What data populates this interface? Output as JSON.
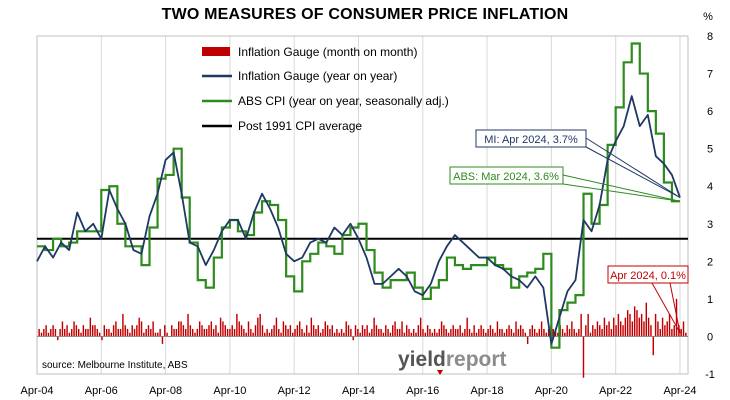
{
  "chart_data": {
    "type": "bar+line",
    "title": "TWO MEASURES OF CONSUMER PRICE INFLATION",
    "ylabel": "%",
    "ylim": [
      -1,
      8
    ],
    "yticks": [
      -1,
      0,
      1,
      2,
      3,
      4,
      5,
      6,
      7,
      8
    ],
    "xlim": [
      2004.25,
      2024.5
    ],
    "xticks": [
      {
        "x": 2004.25,
        "label": "Apr-04"
      },
      {
        "x": 2006.25,
        "label": "Apr-06"
      },
      {
        "x": 2008.25,
        "label": "Apr-08"
      },
      {
        "x": 2010.25,
        "label": "Apr-10"
      },
      {
        "x": 2012.25,
        "label": "Apr-12"
      },
      {
        "x": 2014.25,
        "label": "Apr-14"
      },
      {
        "x": 2016.25,
        "label": "Apr-16"
      },
      {
        "x": 2018.25,
        "label": "Apr-18"
      },
      {
        "x": 2020.25,
        "label": "Apr-20"
      },
      {
        "x": 2022.25,
        "label": "Apr-22"
      },
      {
        "x": 2024.25,
        "label": "Apr-24"
      }
    ],
    "legend": {
      "placement": "top-left",
      "entries": [
        {
          "label": "Inflation Gauge (month on month)",
          "color": "#c00000",
          "kind": "bar"
        },
        {
          "label": "Inflation Gauge (year on year)",
          "color": "#1f3864",
          "kind": "line"
        },
        {
          "label": "ABS CPI (year on year, seasonally adj.)",
          "color": "#2e8b1e",
          "kind": "line"
        },
        {
          "label": "Post 1991 CPI average",
          "color": "#000000",
          "kind": "line"
        }
      ]
    },
    "series": [
      {
        "name": "Inflation Gauge (year on year)",
        "type": "line",
        "color": "#1f3864",
        "points": [
          [
            2004.25,
            2.0
          ],
          [
            2004.5,
            2.4
          ],
          [
            2004.75,
            2.1
          ],
          [
            2005.0,
            2.5
          ],
          [
            2005.25,
            2.3
          ],
          [
            2005.5,
            3.3
          ],
          [
            2005.75,
            2.8
          ],
          [
            2006.0,
            3.0
          ],
          [
            2006.25,
            2.6
          ],
          [
            2006.5,
            3.9
          ],
          [
            2006.75,
            3.4
          ],
          [
            2007.0,
            3.0
          ],
          [
            2007.25,
            2.3
          ],
          [
            2007.5,
            2.2
          ],
          [
            2007.75,
            3.2
          ],
          [
            2008.0,
            3.8
          ],
          [
            2008.25,
            4.7
          ],
          [
            2008.5,
            4.9
          ],
          [
            2008.75,
            3.8
          ],
          [
            2009.0,
            2.5
          ],
          [
            2009.25,
            2.4
          ],
          [
            2009.5,
            1.9
          ],
          [
            2009.75,
            2.3
          ],
          [
            2010.0,
            2.8
          ],
          [
            2010.25,
            3.1
          ],
          [
            2010.5,
            3.1
          ],
          [
            2010.75,
            2.6
          ],
          [
            2011.0,
            3.3
          ],
          [
            2011.25,
            3.8
          ],
          [
            2011.5,
            3.4
          ],
          [
            2011.75,
            2.9
          ],
          [
            2012.0,
            2.2
          ],
          [
            2012.25,
            2.0
          ],
          [
            2012.5,
            2.1
          ],
          [
            2012.75,
            2.5
          ],
          [
            2013.0,
            2.6
          ],
          [
            2013.25,
            2.5
          ],
          [
            2013.5,
            2.9
          ],
          [
            2013.75,
            2.7
          ],
          [
            2014.0,
            3.0
          ],
          [
            2014.25,
            2.6
          ],
          [
            2014.5,
            2.1
          ],
          [
            2014.75,
            1.4
          ],
          [
            2015.0,
            1.4
          ],
          [
            2015.25,
            1.6
          ],
          [
            2015.5,
            1.8
          ],
          [
            2015.75,
            1.6
          ],
          [
            2016.0,
            1.2
          ],
          [
            2016.25,
            1.1
          ],
          [
            2016.5,
            1.4
          ],
          [
            2016.75,
            2.0
          ],
          [
            2017.0,
            2.4
          ],
          [
            2017.25,
            2.7
          ],
          [
            2017.5,
            2.5
          ],
          [
            2017.75,
            2.3
          ],
          [
            2018.0,
            2.1
          ],
          [
            2018.25,
            2.1
          ],
          [
            2018.5,
            1.9
          ],
          [
            2018.75,
            1.8
          ],
          [
            2019.0,
            1.6
          ],
          [
            2019.25,
            1.5
          ],
          [
            2019.5,
            1.3
          ],
          [
            2019.75,
            1.6
          ],
          [
            2020.0,
            1.3
          ],
          [
            2020.25,
            -0.2
          ],
          [
            2020.5,
            0.5
          ],
          [
            2020.75,
            1.2
          ],
          [
            2021.0,
            1.5
          ],
          [
            2021.25,
            3.1
          ],
          [
            2021.5,
            2.8
          ],
          [
            2021.75,
            3.5
          ],
          [
            2022.0,
            4.7
          ],
          [
            2022.25,
            5.2
          ],
          [
            2022.5,
            5.6
          ],
          [
            2022.75,
            6.4
          ],
          [
            2023.0,
            5.6
          ],
          [
            2023.25,
            5.9
          ],
          [
            2023.5,
            4.8
          ],
          [
            2023.75,
            4.6
          ],
          [
            2024.0,
            4.3
          ],
          [
            2024.25,
            3.7
          ]
        ]
      },
      {
        "name": "ABS CPI (year on year, seasonally adj.)",
        "type": "step",
        "color": "#2e8b1e",
        "points": [
          [
            2004.25,
            2.4
          ],
          [
            2004.5,
            2.3
          ],
          [
            2004.75,
            2.6
          ],
          [
            2005.0,
            2.4
          ],
          [
            2005.25,
            2.5
          ],
          [
            2005.5,
            2.8
          ],
          [
            2005.75,
            2.8
          ],
          [
            2006.0,
            2.8
          ],
          [
            2006.25,
            3.9
          ],
          [
            2006.5,
            4.0
          ],
          [
            2006.75,
            3.0
          ],
          [
            2007.0,
            2.4
          ],
          [
            2007.25,
            2.4
          ],
          [
            2007.5,
            1.9
          ],
          [
            2007.75,
            2.9
          ],
          [
            2008.0,
            4.2
          ],
          [
            2008.25,
            4.3
          ],
          [
            2008.5,
            5.0
          ],
          [
            2008.75,
            3.7
          ],
          [
            2009.0,
            2.5
          ],
          [
            2009.25,
            1.5
          ],
          [
            2009.5,
            1.3
          ],
          [
            2009.75,
            2.1
          ],
          [
            2010.0,
            2.9
          ],
          [
            2010.25,
            3.1
          ],
          [
            2010.5,
            2.8
          ],
          [
            2010.75,
            2.7
          ],
          [
            2011.0,
            3.3
          ],
          [
            2011.25,
            3.6
          ],
          [
            2011.5,
            3.5
          ],
          [
            2011.75,
            3.1
          ],
          [
            2012.0,
            1.6
          ],
          [
            2012.25,
            1.2
          ],
          [
            2012.5,
            2.0
          ],
          [
            2012.75,
            2.2
          ],
          [
            2013.0,
            2.5
          ],
          [
            2013.25,
            2.4
          ],
          [
            2013.5,
            2.2
          ],
          [
            2013.75,
            2.7
          ],
          [
            2014.0,
            2.9
          ],
          [
            2014.25,
            3.0
          ],
          [
            2014.5,
            2.3
          ],
          [
            2014.75,
            1.7
          ],
          [
            2015.0,
            1.3
          ],
          [
            2015.25,
            1.5
          ],
          [
            2015.5,
            1.5
          ],
          [
            2015.75,
            1.7
          ],
          [
            2016.0,
            1.3
          ],
          [
            2016.25,
            1.0
          ],
          [
            2016.5,
            1.3
          ],
          [
            2016.75,
            1.5
          ],
          [
            2017.0,
            2.1
          ],
          [
            2017.25,
            1.9
          ],
          [
            2017.5,
            1.8
          ],
          [
            2017.75,
            1.9
          ],
          [
            2018.0,
            1.9
          ],
          [
            2018.25,
            2.1
          ],
          [
            2018.5,
            1.9
          ],
          [
            2018.75,
            1.8
          ],
          [
            2019.0,
            1.3
          ],
          [
            2019.25,
            1.6
          ],
          [
            2019.5,
            1.7
          ],
          [
            2019.75,
            1.8
          ],
          [
            2020.0,
            2.2
          ],
          [
            2020.25,
            -0.3
          ],
          [
            2020.5,
            0.7
          ],
          [
            2020.75,
            0.9
          ],
          [
            2021.0,
            1.1
          ],
          [
            2021.25,
            3.8
          ],
          [
            2021.5,
            3.0
          ],
          [
            2021.75,
            3.5
          ],
          [
            2022.0,
            5.1
          ],
          [
            2022.25,
            6.1
          ],
          [
            2022.5,
            7.3
          ],
          [
            2022.75,
            7.8
          ],
          [
            2023.0,
            7.0
          ],
          [
            2023.25,
            6.0
          ],
          [
            2023.5,
            5.4
          ],
          [
            2023.75,
            4.1
          ],
          [
            2024.0,
            3.6
          ]
        ]
      },
      {
        "name": "Inflation Gauge (month on month)",
        "type": "bar",
        "color": "#c00000",
        "values": [
          0.2,
          0.1,
          0.2,
          0.3,
          0.1,
          0.2,
          0.3,
          0.2,
          -0.1,
          0.2,
          0.4,
          0.2,
          0.3,
          0.1,
          0.2,
          0.4,
          0.3,
          0.2,
          0.1,
          0.3,
          0.2,
          0.2,
          0.5,
          0.3,
          0.3,
          0.2,
          0.1,
          -0.1,
          0.3,
          0.2,
          0.2,
          0.1,
          0.3,
          0.4,
          0.2,
          0.2,
          0.6,
          0.3,
          0.2,
          0.1,
          0.3,
          0.2,
          0.3,
          0.5,
          0.4,
          0.1,
          0.2,
          0.3,
          0.2,
          0.4,
          0.1,
          0.1,
          0.2,
          -0.2,
          0.3,
          0.1,
          0.0,
          0.3,
          0.2,
          0.2,
          0.4,
          0.4,
          0.3,
          0.2,
          0.6,
          0.3,
          0.2,
          0.1,
          0.2,
          0.4,
          0.3,
          0.2,
          0.2,
          0.3,
          0.4,
          0.2,
          0.3,
          0.1,
          0.5,
          0.4,
          0.3,
          0.2,
          0.2,
          0.3,
          0.2,
          0.6,
          0.4,
          0.3,
          0.2,
          0.1,
          0.4,
          0.2,
          0.1,
          0.3,
          0.5,
          0.6,
          0.3,
          0.1,
          0.2,
          0.1,
          0.2,
          0.3,
          0.5,
          0.2,
          0.1,
          0.4,
          0.3,
          0.2,
          0.3,
          0.1,
          0.2,
          0.3,
          0.4,
          0.2,
          0.1,
          0.3,
          0.1,
          0.5,
          0.3,
          0.2,
          0.3,
          0.1,
          0.2,
          0.4,
          0.3,
          0.2,
          0.3,
          0.1,
          0.2,
          0.1,
          0.2,
          0.1,
          0.4,
          0.3,
          0.2,
          -0.1,
          0.3,
          0.2,
          0.1,
          0.3,
          0.2,
          0.3,
          0.1,
          0.2,
          0.5,
          0.3,
          0.2,
          0.2,
          0.1,
          0.3,
          0.2,
          0.1,
          0.3,
          0.4,
          0.2,
          0.2,
          0.4,
          0.1,
          0.3,
          0.2,
          0.1,
          0.2,
          0.1,
          0.3,
          0.5,
          0.2,
          0.1,
          0.3,
          0.2,
          0.1,
          0.2,
          0.1,
          0.2,
          0.4,
          0.3,
          0.2,
          0.1,
          0.2,
          0.3,
          0.2,
          0.2,
          0.3,
          0.1,
          0.2,
          0.5,
          0.2,
          0.1,
          0.3,
          0.1,
          0.2,
          0.3,
          0.2,
          0.1,
          0.2,
          0.3,
          0.2,
          0.1,
          0.4,
          0.2,
          0.2,
          0.1,
          0.2,
          0.3,
          0.2,
          0.1,
          0.4,
          0.2,
          0.3,
          0.2,
          0.1,
          -0.2,
          0.2,
          0.3,
          0.2,
          0.1,
          0.2,
          0.4,
          0.2,
          0.1,
          0.2,
          0.3,
          0.2,
          0.2,
          0.1,
          0.3,
          0.2,
          0.1,
          0.3,
          0.2,
          0.4,
          0.2,
          0.1,
          0.2,
          0.6,
          -1.1,
          0.3,
          0.6,
          0.1,
          0.3,
          0.2,
          0.4,
          0.3,
          0.2,
          0.5,
          0.3,
          0.4,
          0.2,
          0.5,
          0.3,
          0.6,
          0.4,
          0.3,
          0.5,
          0.7,
          0.6,
          0.4,
          0.8,
          0.7,
          0.5,
          0.6,
          0.4,
          0.9,
          0.5,
          0.3,
          -0.5,
          0.6,
          0.4,
          0.2,
          0.5,
          0.3,
          0.4,
          0.6,
          0.2,
          0.3,
          1.0,
          0.3,
          0.2,
          0.4,
          0.1
        ]
      },
      {
        "name": "Post 1991 CPI average",
        "type": "hline",
        "color": "#000000",
        "value": 2.6
      }
    ],
    "annotations": [
      {
        "text": "MI: Apr 2024, 3.7%",
        "color": "#1f3864",
        "target": [
          2024.25,
          3.7
        ]
      },
      {
        "text": "ABS: Mar 2024, 3.6%",
        "color": "#2e8b1e",
        "target": [
          2024.0,
          3.6
        ]
      },
      {
        "text": "Apr 2024, 0.1%",
        "color": "#c00000",
        "target": [
          2024.25,
          0.1
        ]
      }
    ],
    "source": "source: Melbourne Institute, ABS",
    "brand": {
      "part1": "yield",
      "part2": "report"
    },
    "grid": "vertical"
  }
}
